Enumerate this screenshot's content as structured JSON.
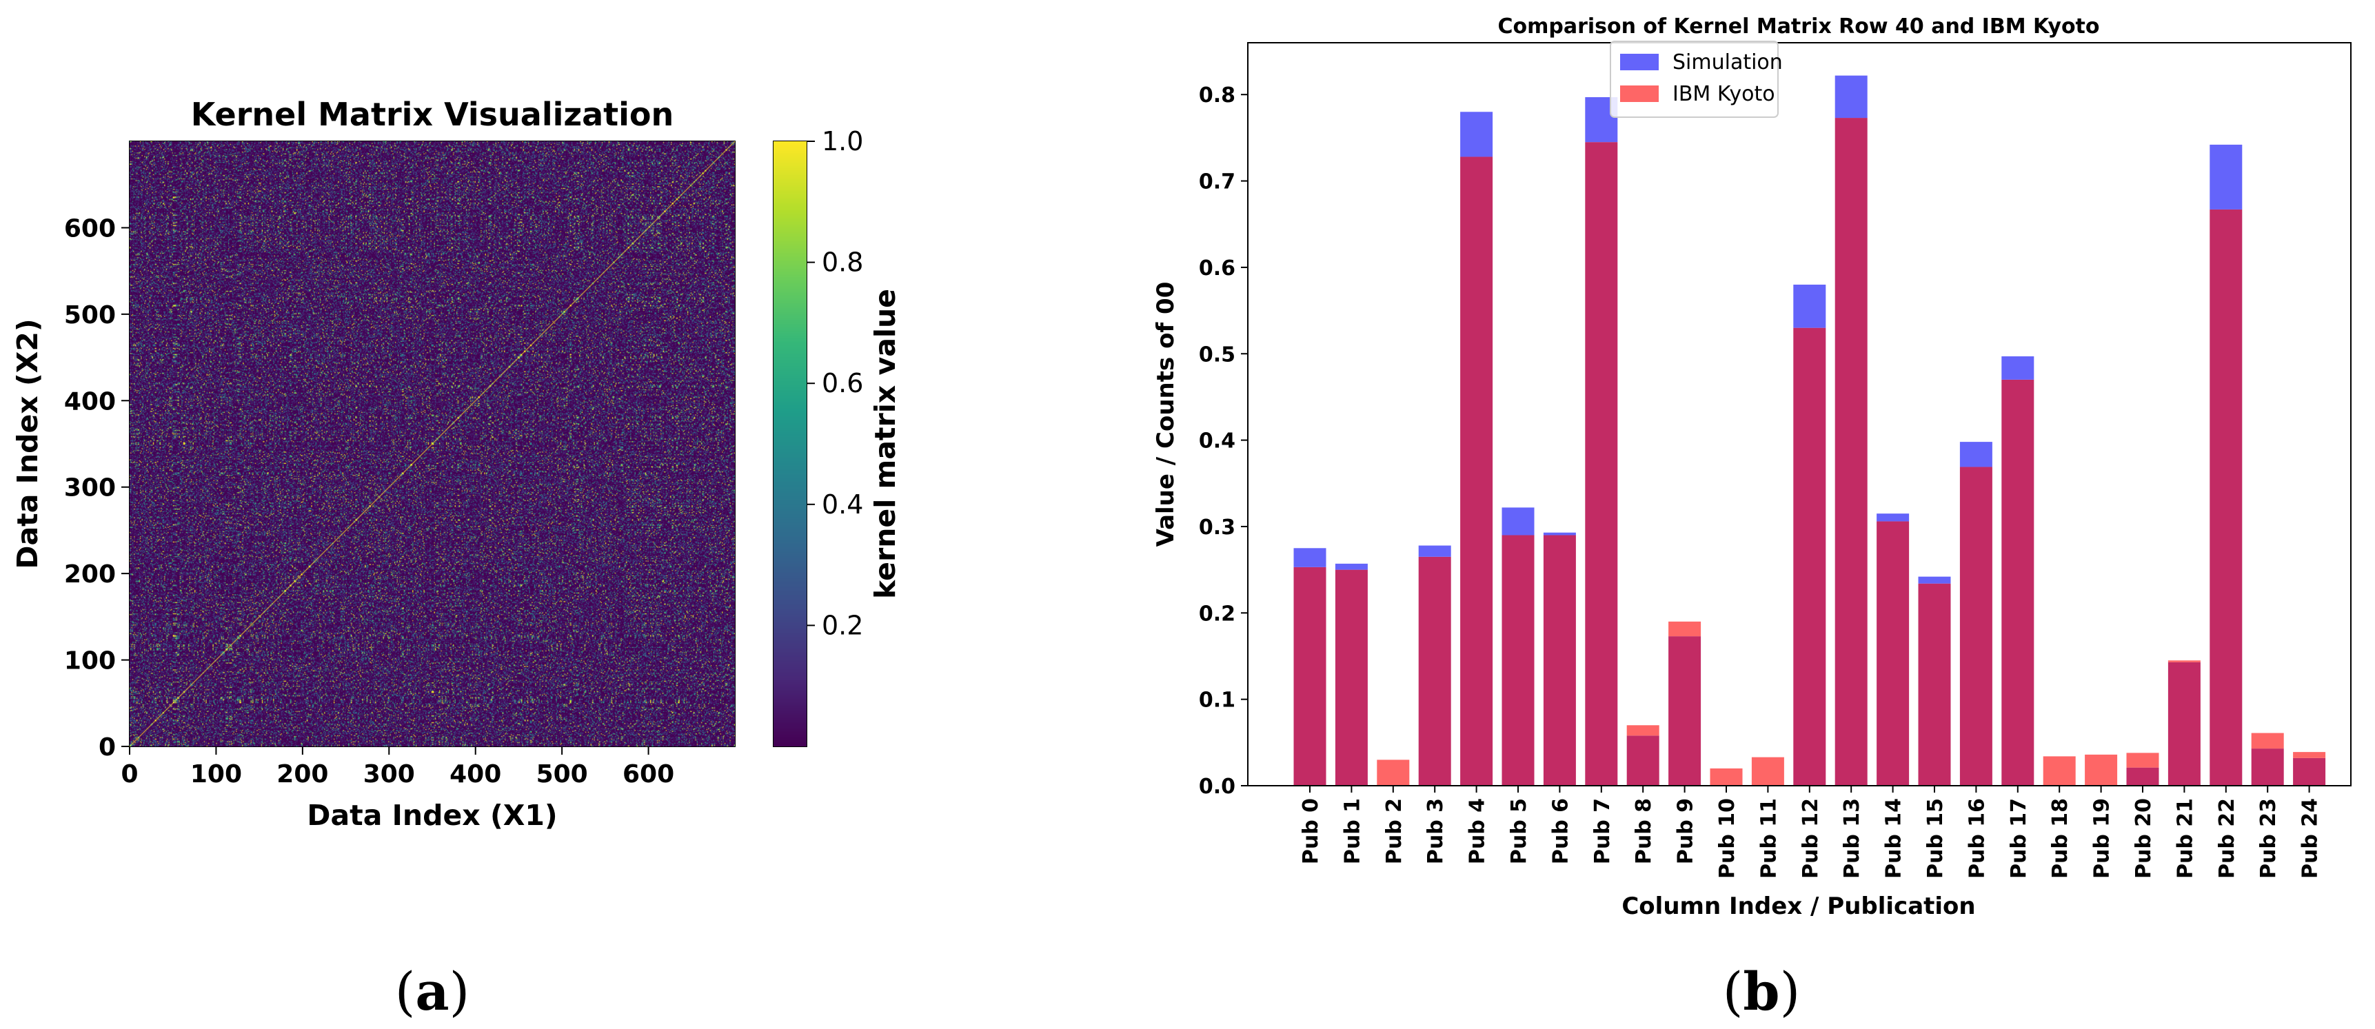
{
  "panel_labels": [
    {
      "open": "(",
      "letter": "a",
      "close": ")"
    },
    {
      "open": "(",
      "letter": "b",
      "close": ")"
    }
  ],
  "chart_data": [
    {
      "type": "heatmap",
      "title": "Kernel Matrix Visualization",
      "xlabel": "Data Index (X1)",
      "ylabel": "Data Index (X2)",
      "xlim": [
        0,
        700
      ],
      "ylim": [
        0,
        700
      ],
      "xticks": [
        0,
        100,
        200,
        300,
        400,
        500,
        600
      ],
      "yticks": [
        0,
        100,
        200,
        300,
        400,
        500,
        600
      ],
      "colormap": "viridis",
      "diagonal_value": 1.0,
      "colorbar": {
        "label": "kernel matrix value",
        "range": [
          0.0,
          1.0
        ],
        "ticks": [
          "0.2",
          "0.4",
          "0.6",
          "0.8",
          "1.0"
        ]
      }
    },
    {
      "type": "bar",
      "title": "Comparison of Kernel Matrix Row 40 and IBM Kyoto",
      "xlabel": "Column Index / Publication",
      "ylabel": "Value / Counts of 00",
      "ylim": [
        0,
        0.86
      ],
      "yticks": [
        "0.0",
        "0.1",
        "0.2",
        "0.3",
        "0.4",
        "0.5",
        "0.6",
        "0.7",
        "0.8"
      ],
      "legend_position": "top-center",
      "categories": [
        "Pub 0",
        "Pub 1",
        "Pub 2",
        "Pub 3",
        "Pub 4",
        "Pub 5",
        "Pub 6",
        "Pub 7",
        "Pub 8",
        "Pub 9",
        "Pub 10",
        "Pub 11",
        "Pub 12",
        "Pub 13",
        "Pub 14",
        "Pub 15",
        "Pub 16",
        "Pub 17",
        "Pub 18",
        "Pub 19",
        "Pub 20",
        "Pub 21",
        "Pub 22",
        "Pub 23",
        "Pub 24"
      ],
      "series": [
        {
          "name": "Simulation",
          "color": "#6464fa",
          "values": [
            0.275,
            0.257,
            0.0,
            0.278,
            0.78,
            0.322,
            0.293,
            0.797,
            0.058,
            0.173,
            0.0,
            0.0,
            0.58,
            0.822,
            0.315,
            0.242,
            0.398,
            0.497,
            0.0,
            0.0,
            0.021,
            0.143,
            0.742,
            0.043,
            0.032
          ]
        },
        {
          "name": "IBM Kyoto",
          "color": "#fe6666",
          "values": [
            0.253,
            0.25,
            0.03,
            0.265,
            0.728,
            0.29,
            0.29,
            0.745,
            0.07,
            0.19,
            0.02,
            0.033,
            0.53,
            0.773,
            0.306,
            0.234,
            0.369,
            0.47,
            0.034,
            0.036,
            0.038,
            0.145,
            0.667,
            0.061,
            0.039
          ]
        }
      ],
      "overlap_color": "#c22b64"
    }
  ]
}
